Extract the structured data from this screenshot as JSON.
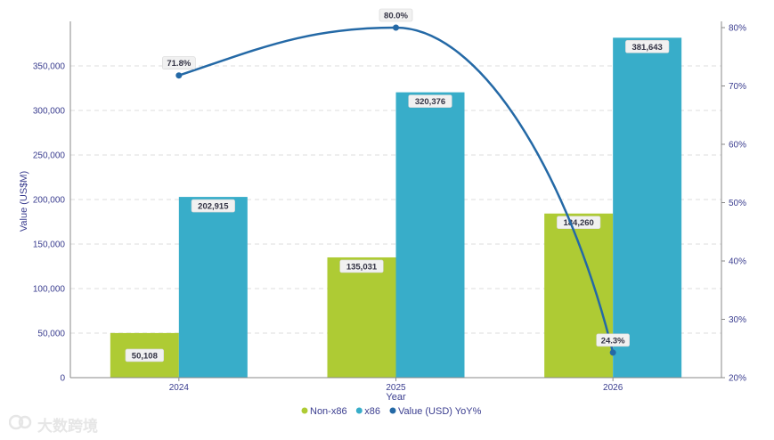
{
  "chart_data": {
    "type": "bar",
    "xlabel": "Year",
    "ylabel": "Value (US$M)",
    "categories": [
      "2024",
      "2025",
      "2026"
    ],
    "ylim": [
      0,
      400000
    ],
    "yticks": [
      "0",
      "50,000",
      "100,000",
      "150,000",
      "200,000",
      "250,000",
      "300,000",
      "350,000"
    ],
    "y2lim": [
      20,
      80
    ],
    "y2ticks": [
      "20%",
      "30%",
      "40%",
      "50%",
      "60%",
      "70%",
      "80%"
    ],
    "grid": true,
    "legend_position": "bottom",
    "series": [
      {
        "name": "Non-x86",
        "type": "bar",
        "color": "#aecb34",
        "values": [
          50108,
          135031,
          184260
        ],
        "labels": [
          "50,108",
          "135,031",
          "184,260"
        ]
      },
      {
        "name": "x86",
        "type": "bar",
        "color": "#38adc9",
        "values": [
          202915,
          320376,
          381643
        ],
        "labels": [
          "202,915",
          "320,376",
          "381,643"
        ]
      },
      {
        "name": "Value (USD) YoY%",
        "type": "line",
        "axis": "right",
        "color": "#2469a6",
        "values": [
          71.8,
          80.0,
          24.3
        ],
        "labels": [
          "71.8%",
          "80.0%",
          "24.3%"
        ]
      }
    ]
  },
  "watermark": {
    "text": "大数跨境",
    "icon": "brand-logo-icon"
  }
}
